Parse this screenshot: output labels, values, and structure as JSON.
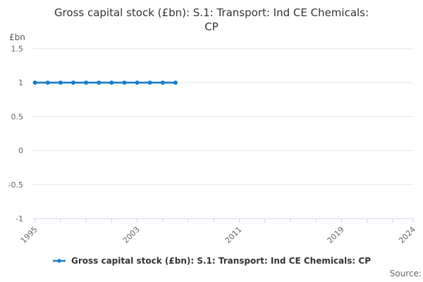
{
  "title_lines": [
    "Gross capital stock (£bn): S.1: Transport: Ind CE Chemicals:",
    "CP"
  ],
  "y_unit_label": "£bn",
  "source_label": "Source:",
  "legend": {
    "items": [
      {
        "label": "Gross capital stock (£bn): S.1: Transport: Ind CE Chemicals: CP",
        "color": "#1a7dc6"
      }
    ]
  },
  "colors": {
    "series": "#1a7dc6",
    "gridline": "#e6e6e6",
    "axis_line": "#ccd6eb",
    "tick_label": "#666666",
    "title_text": "#333333"
  },
  "chart_data": {
    "type": "line",
    "title": "Gross capital stock (£bn): S.1: Transport: Ind CE Chemicals: CP",
    "xlabel": "",
    "ylabel": "£bn",
    "x": [
      1995,
      1996,
      1997,
      1998,
      1999,
      2000,
      2001,
      2002,
      2003,
      2004,
      2005,
      2006
    ],
    "series": [
      {
        "name": "Gross capital stock (£bn): S.1: Transport: Ind CE Chemicals: CP",
        "values": [
          1,
          1,
          1,
          1,
          1,
          1,
          1,
          1,
          1,
          1,
          1,
          1
        ],
        "color": "#1a7dc6",
        "marker": "circle"
      }
    ],
    "xlim": [
      1994.8,
      2024.6
    ],
    "ylim": [
      -1,
      1.5
    ],
    "y_ticks": [
      -1,
      -0.5,
      0,
      0.5,
      1,
      1.5
    ],
    "y_tick_labels": [
      "-1",
      "-0.5",
      "0",
      "0.5",
      "1",
      "1.5"
    ],
    "x_minor_tick_years_start": 1995,
    "x_minor_tick_years_end": 2023,
    "x_minor_tick_step": 2,
    "x_labeled_ticks": [
      "1995",
      "2003",
      "2011",
      "2019",
      "2024"
    ],
    "grid": "horizontal",
    "legend_position": "bottom"
  }
}
